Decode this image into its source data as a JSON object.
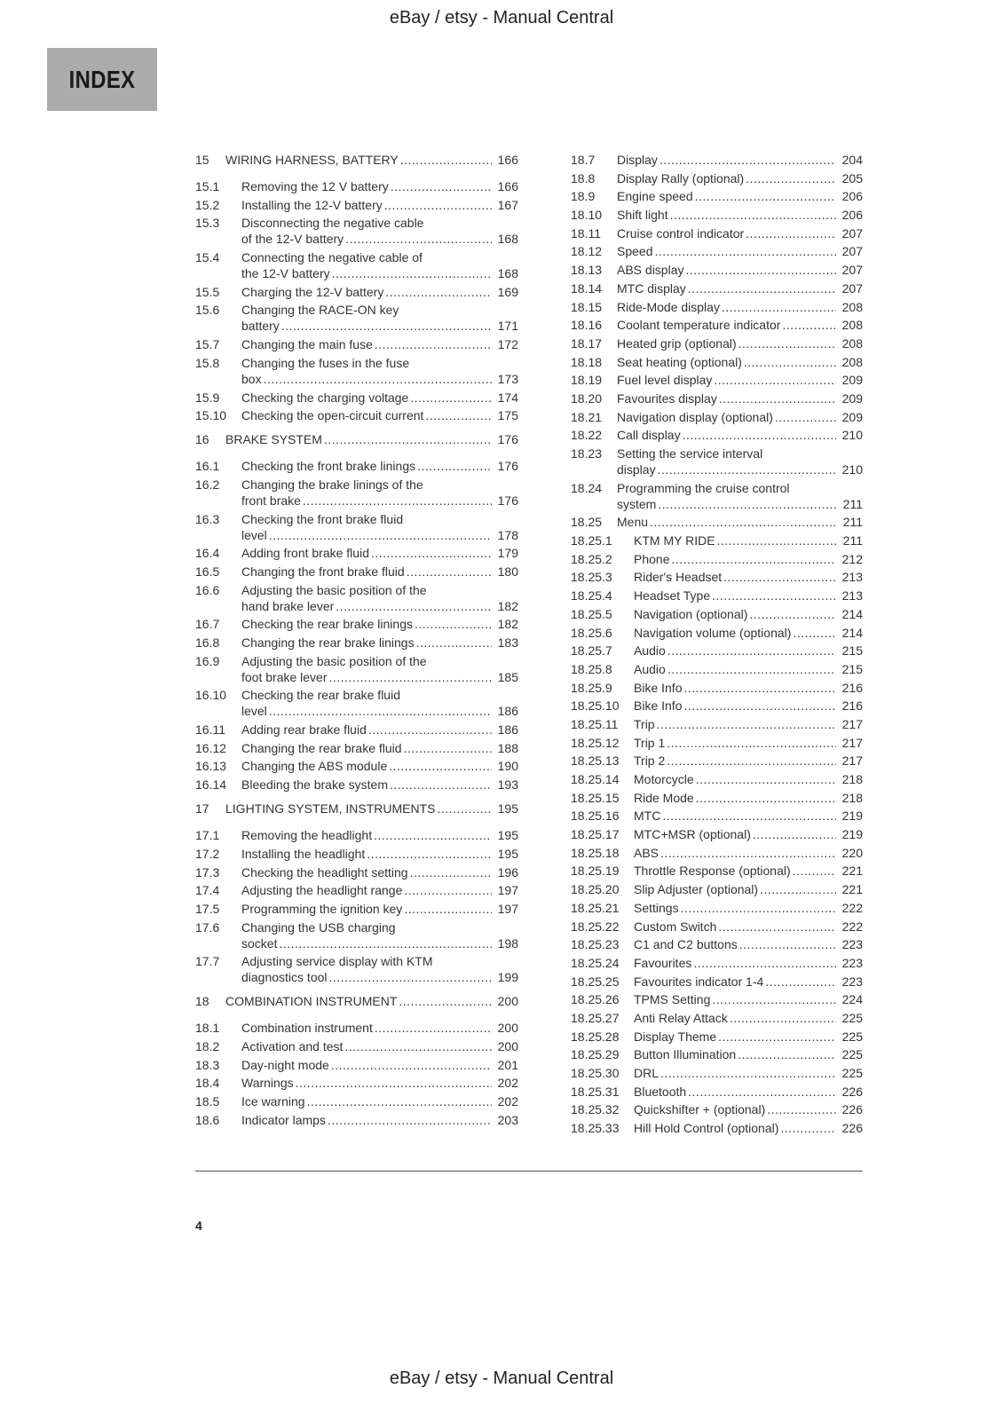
{
  "watermark_top": "eBay / etsy - Manual Central",
  "watermark_bottom": "eBay / etsy - Manual Central",
  "index_label": "INDEX",
  "page_number": "4",
  "left": [
    {
      "n": "15",
      "t": "WIRING HARNESS, BATTERY",
      "p": "166",
      "chap": true
    },
    {
      "n": "15.1",
      "t": "Removing the 12 V battery",
      "p": "166"
    },
    {
      "n": "15.2",
      "t": "Installing the 12-V battery",
      "p": "167"
    },
    {
      "n": "15.3",
      "t": "Disconnecting the negative cable",
      "t2": "of the 12-V battery",
      "p": "168"
    },
    {
      "n": "15.4",
      "t": "Connecting the negative cable of",
      "t2": "the 12-V battery",
      "p": "168"
    },
    {
      "n": "15.5",
      "t": "Charging the 12-V battery",
      "p": "169"
    },
    {
      "n": "15.6",
      "t": "Changing the RACE-ON key",
      "t2": "battery",
      "p": "171"
    },
    {
      "n": "15.7",
      "t": "Changing the main fuse",
      "p": "172"
    },
    {
      "n": "15.8",
      "t": "Changing the fuses in the fuse",
      "t2": "box",
      "p": "173"
    },
    {
      "n": "15.9",
      "t": "Checking the charging voltage",
      "p": "174"
    },
    {
      "n": "15.10",
      "t": "Checking the open-circuit current",
      "p": "175"
    },
    {
      "n": "16",
      "t": "BRAKE SYSTEM",
      "p": "176",
      "chap": true
    },
    {
      "n": "16.1",
      "t": "Checking the front brake linings",
      "p": "176"
    },
    {
      "n": "16.2",
      "t": "Changing the brake linings of the",
      "t2": "front brake",
      "p": "176"
    },
    {
      "n": "16.3",
      "t": "Checking the front brake fluid",
      "t2": "level",
      "p": "178"
    },
    {
      "n": "16.4",
      "t": "Adding front brake fluid",
      "p": "179"
    },
    {
      "n": "16.5",
      "t": "Changing the front brake fluid",
      "p": "180"
    },
    {
      "n": "16.6",
      "t": "Adjusting the basic position of the",
      "t2": "hand brake lever",
      "p": "182"
    },
    {
      "n": "16.7",
      "t": "Checking the rear brake linings",
      "p": "182"
    },
    {
      "n": "16.8",
      "t": "Changing the rear brake linings",
      "p": "183"
    },
    {
      "n": "16.9",
      "t": "Adjusting the basic position of the",
      "t2": "foot brake lever",
      "p": "185"
    },
    {
      "n": "16.10",
      "t": "Checking the rear brake fluid",
      "t2": "level",
      "p": "186"
    },
    {
      "n": "16.11",
      "t": "Adding rear brake fluid",
      "p": "186"
    },
    {
      "n": "16.12",
      "t": "Changing the rear brake fluid",
      "p": "188"
    },
    {
      "n": "16.13",
      "t": "Changing the ABS module",
      "p": "190"
    },
    {
      "n": "16.14",
      "t": "Bleeding the brake system",
      "p": "193"
    },
    {
      "n": "17",
      "t": "LIGHTING SYSTEM, INSTRUMENTS",
      "p": "195",
      "chap": true
    },
    {
      "n": "17.1",
      "t": "Removing the headlight",
      "p": "195"
    },
    {
      "n": "17.2",
      "t": "Installing the headlight",
      "p": "195"
    },
    {
      "n": "17.3",
      "t": "Checking the headlight setting",
      "p": "196"
    },
    {
      "n": "17.4",
      "t": "Adjusting the headlight range",
      "p": "197"
    },
    {
      "n": "17.5",
      "t": "Programming the ignition key",
      "p": "197"
    },
    {
      "n": "17.6",
      "t": "Changing the USB charging",
      "t2": "socket",
      "p": "198"
    },
    {
      "n": "17.7",
      "t": "Adjusting service display with KTM",
      "t2": "diagnostics tool",
      "p": "199"
    },
    {
      "n": "18",
      "t": "COMBINATION INSTRUMENT",
      "p": "200",
      "chap": true
    },
    {
      "n": "18.1",
      "t": "Combination instrument",
      "p": "200"
    },
    {
      "n": "18.2",
      "t": "Activation and test",
      "p": "200"
    },
    {
      "n": "18.3",
      "t": "Day-night mode",
      "p": "201"
    },
    {
      "n": "18.4",
      "t": "Warnings",
      "p": "202"
    },
    {
      "n": "18.5",
      "t": "Ice warning",
      "p": "202"
    },
    {
      "n": "18.6",
      "t": "Indicator lamps",
      "p": "203"
    }
  ],
  "right": [
    {
      "n": "18.7",
      "t": "Display",
      "p": "204"
    },
    {
      "n": "18.8",
      "t": "Display Rally (optional)",
      "p": "205"
    },
    {
      "n": "18.9",
      "t": "Engine speed",
      "p": "206"
    },
    {
      "n": "18.10",
      "t": "Shift light",
      "p": "206"
    },
    {
      "n": "18.11",
      "t": "Cruise control indicator",
      "p": "207"
    },
    {
      "n": "18.12",
      "t": "Speed",
      "p": "207"
    },
    {
      "n": "18.13",
      "t": "ABS display",
      "p": "207"
    },
    {
      "n": "18.14",
      "t": "MTC display",
      "p": "207"
    },
    {
      "n": "18.15",
      "t": "Ride-Mode display",
      "p": "208"
    },
    {
      "n": "18.16",
      "t": "Coolant temperature indicator",
      "p": "208"
    },
    {
      "n": "18.17",
      "t": "Heated grip (optional)",
      "p": "208"
    },
    {
      "n": "18.18",
      "t": "Seat heating (optional)",
      "p": "208"
    },
    {
      "n": "18.19",
      "t": "Fuel level display",
      "p": "209"
    },
    {
      "n": "18.20",
      "t": "Favourites display",
      "p": "209"
    },
    {
      "n": "18.21",
      "t": "Navigation display (optional)",
      "p": "209"
    },
    {
      "n": "18.22",
      "t": "Call display",
      "p": "210"
    },
    {
      "n": "18.23",
      "t": "Setting the service interval",
      "t2": "display",
      "p": "210"
    },
    {
      "n": "18.24",
      "t": "Programming the cruise control",
      "t2": "system",
      "p": "211"
    },
    {
      "n": "18.25",
      "t": "Menu",
      "p": "211"
    },
    {
      "n": "18.25.1",
      "t": "KTM MY RIDE",
      "p": "211"
    },
    {
      "n": "18.25.2",
      "t": "Phone",
      "p": "212"
    },
    {
      "n": "18.25.3",
      "t": "Rider's Headset",
      "p": "213"
    },
    {
      "n": "18.25.4",
      "t": "Headset Type",
      "p": "213"
    },
    {
      "n": "18.25.5",
      "t": "Navigation (optional)",
      "p": "214"
    },
    {
      "n": "18.25.6",
      "t": "Navigation volume (optional)",
      "p": "214"
    },
    {
      "n": "18.25.7",
      "t": "Audio",
      "p": "215"
    },
    {
      "n": "18.25.8",
      "t": "Audio",
      "p": "215"
    },
    {
      "n": "18.25.9",
      "t": "Bike Info",
      "p": "216"
    },
    {
      "n": "18.25.10",
      "t": "Bike Info",
      "p": "216"
    },
    {
      "n": "18.25.11",
      "t": "Trip",
      "p": "217"
    },
    {
      "n": "18.25.12",
      "t": "Trip 1",
      "p": "217"
    },
    {
      "n": "18.25.13",
      "t": "Trip 2",
      "p": "217"
    },
    {
      "n": "18.25.14",
      "t": "Motorcycle",
      "p": "218"
    },
    {
      "n": "18.25.15",
      "t": "Ride Mode",
      "p": "218"
    },
    {
      "n": "18.25.16",
      "t": "MTC",
      "p": "219"
    },
    {
      "n": "18.25.17",
      "t": "MTC+MSR (optional)",
      "p": "219"
    },
    {
      "n": "18.25.18",
      "t": "ABS",
      "p": "220"
    },
    {
      "n": "18.25.19",
      "t": "Throttle Response (optional)",
      "p": "221"
    },
    {
      "n": "18.25.20",
      "t": "Slip Adjuster (optional)",
      "p": "221"
    },
    {
      "n": "18.25.21",
      "t": "Settings",
      "p": "222"
    },
    {
      "n": "18.25.22",
      "t": "Custom Switch",
      "p": "222"
    },
    {
      "n": "18.25.23",
      "t": "C1 and C2 buttons",
      "p": "223"
    },
    {
      "n": "18.25.24",
      "t": "Favourites",
      "p": "223"
    },
    {
      "n": "18.25.25",
      "t": "Favourites indicator 1-4",
      "p": "223"
    },
    {
      "n": "18.25.26",
      "t": "TPMS Setting",
      "p": "224"
    },
    {
      "n": "18.25.27",
      "t": "Anti Relay Attack",
      "p": "225"
    },
    {
      "n": "18.25.28",
      "t": "Display Theme",
      "p": "225"
    },
    {
      "n": "18.25.29",
      "t": "Button Illumination",
      "p": "225"
    },
    {
      "n": "18.25.30",
      "t": "DRL",
      "p": "225"
    },
    {
      "n": "18.25.31",
      "t": "Bluetooth",
      "p": "226"
    },
    {
      "n": "18.25.32",
      "t": "Quickshifter + (optional)",
      "p": "226"
    },
    {
      "n": "18.25.33",
      "t": "Hill Hold Control (optional)",
      "p": "226"
    }
  ]
}
